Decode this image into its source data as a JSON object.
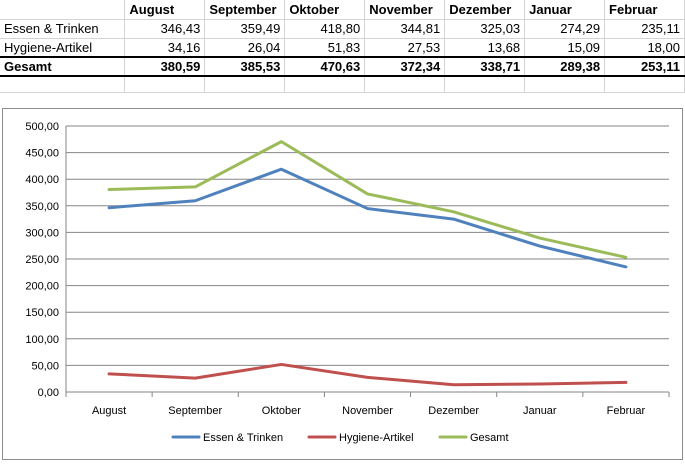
{
  "table": {
    "months": [
      "August",
      "September",
      "Oktober",
      "November",
      "Dezember",
      "Januar",
      "Februar"
    ],
    "rows": [
      {
        "label": "Essen & Trinken",
        "values": [
          "346,43",
          "359,49",
          "418,80",
          "344,81",
          "325,03",
          "274,29",
          "235,11"
        ]
      },
      {
        "label": "Hygiene-Artikel",
        "values": [
          "34,16",
          "26,04",
          "51,83",
          "27,53",
          "13,68",
          "15,09",
          "18,00"
        ]
      },
      {
        "label": "Gesamt",
        "values": [
          "380,59",
          "385,53",
          "470,63",
          "372,34",
          "338,71",
          "289,38",
          "253,11"
        ]
      }
    ]
  },
  "chart_data": {
    "type": "line",
    "categories": [
      "August",
      "September",
      "Oktober",
      "November",
      "Dezember",
      "Januar",
      "Februar"
    ],
    "series": [
      {
        "name": "Essen & Trinken",
        "color": "#4f81bd",
        "values": [
          346.43,
          359.49,
          418.8,
          344.81,
          325.03,
          274.29,
          235.11
        ]
      },
      {
        "name": "Hygiene-Artikel",
        "color": "#c0504d",
        "values": [
          34.16,
          26.04,
          51.83,
          27.53,
          13.68,
          15.09,
          18.0
        ]
      },
      {
        "name": "Gesamt",
        "color": "#9bbb59",
        "values": [
          380.59,
          385.53,
          470.63,
          372.34,
          338.71,
          289.38,
          253.11
        ]
      }
    ],
    "ylim": [
      0,
      500
    ],
    "yticks": [
      "0,00",
      "50,00",
      "100,00",
      "150,00",
      "200,00",
      "250,00",
      "300,00",
      "350,00",
      "400,00",
      "450,00",
      "500,00"
    ],
    "grid": true,
    "legend": "bottom"
  }
}
